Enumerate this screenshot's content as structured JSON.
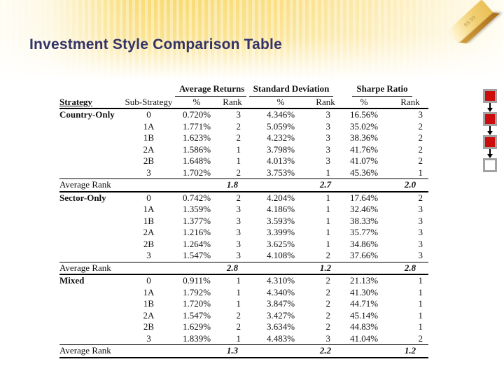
{
  "slide": {
    "title": "Investment Style Comparison Table"
  },
  "decor": {
    "title_color": "#333366",
    "band_gold": "#f9db74",
    "gold_bar": {
      "label": "99.99"
    },
    "flow": {
      "square_fill": "#cc0d0d",
      "square_border": "#a3a3a3",
      "squares": [
        "filled",
        "filled",
        "filled",
        "empty"
      ]
    }
  },
  "table": {
    "group_headers": [
      "Average Returns",
      "Standard Deviation",
      "Sharpe Ratio"
    ],
    "column_headers": [
      "Strategy",
      "Sub-Strategy",
      "%",
      "Rank",
      "%",
      "Rank",
      "%",
      "Rank"
    ],
    "average_rank_label": "Average Rank",
    "sections": [
      {
        "strategy": "Country-Only",
        "rows": [
          {
            "sub": "0",
            "ar_pct": "0.720%",
            "ar_rank": "3",
            "sd_pct": "4.346%",
            "sd_rank": "3",
            "sr_pct": "16.56%",
            "sr_rank": "3"
          },
          {
            "sub": "1A",
            "ar_pct": "1.771%",
            "ar_rank": "2",
            "sd_pct": "5.059%",
            "sd_rank": "3",
            "sr_pct": "35.02%",
            "sr_rank": "2"
          },
          {
            "sub": "1B",
            "ar_pct": "1.623%",
            "ar_rank": "2",
            "sd_pct": "4.232%",
            "sd_rank": "3",
            "sr_pct": "38.36%",
            "sr_rank": "2"
          },
          {
            "sub": "2A",
            "ar_pct": "1.586%",
            "ar_rank": "1",
            "sd_pct": "3.798%",
            "sd_rank": "3",
            "sr_pct": "41.76%",
            "sr_rank": "2"
          },
          {
            "sub": "2B",
            "ar_pct": "1.648%",
            "ar_rank": "1",
            "sd_pct": "4.013%",
            "sd_rank": "3",
            "sr_pct": "41.07%",
            "sr_rank": "2"
          },
          {
            "sub": "3",
            "ar_pct": "1.702%",
            "ar_rank": "2",
            "sd_pct": "3.753%",
            "sd_rank": "1",
            "sr_pct": "45.36%",
            "sr_rank": "1"
          }
        ],
        "average_rank": {
          "ar": "1.8",
          "sd": "2.7",
          "sr": "2.0"
        }
      },
      {
        "strategy": "Sector-Only",
        "rows": [
          {
            "sub": "0",
            "ar_pct": "0.742%",
            "ar_rank": "2",
            "sd_pct": "4.204%",
            "sd_rank": "1",
            "sr_pct": "17.64%",
            "sr_rank": "2"
          },
          {
            "sub": "1A",
            "ar_pct": "1.359%",
            "ar_rank": "3",
            "sd_pct": "4.186%",
            "sd_rank": "1",
            "sr_pct": "32.46%",
            "sr_rank": "3"
          },
          {
            "sub": "1B",
            "ar_pct": "1.377%",
            "ar_rank": "3",
            "sd_pct": "3.593%",
            "sd_rank": "1",
            "sr_pct": "38.33%",
            "sr_rank": "3"
          },
          {
            "sub": "2A",
            "ar_pct": "1.216%",
            "ar_rank": "3",
            "sd_pct": "3.399%",
            "sd_rank": "1",
            "sr_pct": "35.77%",
            "sr_rank": "3"
          },
          {
            "sub": "2B",
            "ar_pct": "1.264%",
            "ar_rank": "3",
            "sd_pct": "3.625%",
            "sd_rank": "1",
            "sr_pct": "34.86%",
            "sr_rank": "3"
          },
          {
            "sub": "3",
            "ar_pct": "1.547%",
            "ar_rank": "3",
            "sd_pct": "4.108%",
            "sd_rank": "2",
            "sr_pct": "37.66%",
            "sr_rank": "3"
          }
        ],
        "average_rank": {
          "ar": "2.8",
          "sd": "1.2",
          "sr": "2.8"
        }
      },
      {
        "strategy": "Mixed",
        "rows": [
          {
            "sub": "0",
            "ar_pct": "0.911%",
            "ar_rank": "1",
            "sd_pct": "4.310%",
            "sd_rank": "2",
            "sr_pct": "21.13%",
            "sr_rank": "1"
          },
          {
            "sub": "1A",
            "ar_pct": "1.792%",
            "ar_rank": "1",
            "sd_pct": "4.340%",
            "sd_rank": "2",
            "sr_pct": "41.30%",
            "sr_rank": "1"
          },
          {
            "sub": "1B",
            "ar_pct": "1.720%",
            "ar_rank": "1",
            "sd_pct": "3.847%",
            "sd_rank": "2",
            "sr_pct": "44.71%",
            "sr_rank": "1"
          },
          {
            "sub": "2A",
            "ar_pct": "1.547%",
            "ar_rank": "2",
            "sd_pct": "3.427%",
            "sd_rank": "2",
            "sr_pct": "45.14%",
            "sr_rank": "1"
          },
          {
            "sub": "2B",
            "ar_pct": "1.629%",
            "ar_rank": "2",
            "sd_pct": "3.634%",
            "sd_rank": "2",
            "sr_pct": "44.83%",
            "sr_rank": "1"
          },
          {
            "sub": "3",
            "ar_pct": "1.839%",
            "ar_rank": "1",
            "sd_pct": "4.483%",
            "sd_rank": "3",
            "sr_pct": "41.04%",
            "sr_rank": "2"
          }
        ],
        "average_rank": {
          "ar": "1.3",
          "sd": "2.2",
          "sr": "1.2"
        }
      }
    ]
  }
}
